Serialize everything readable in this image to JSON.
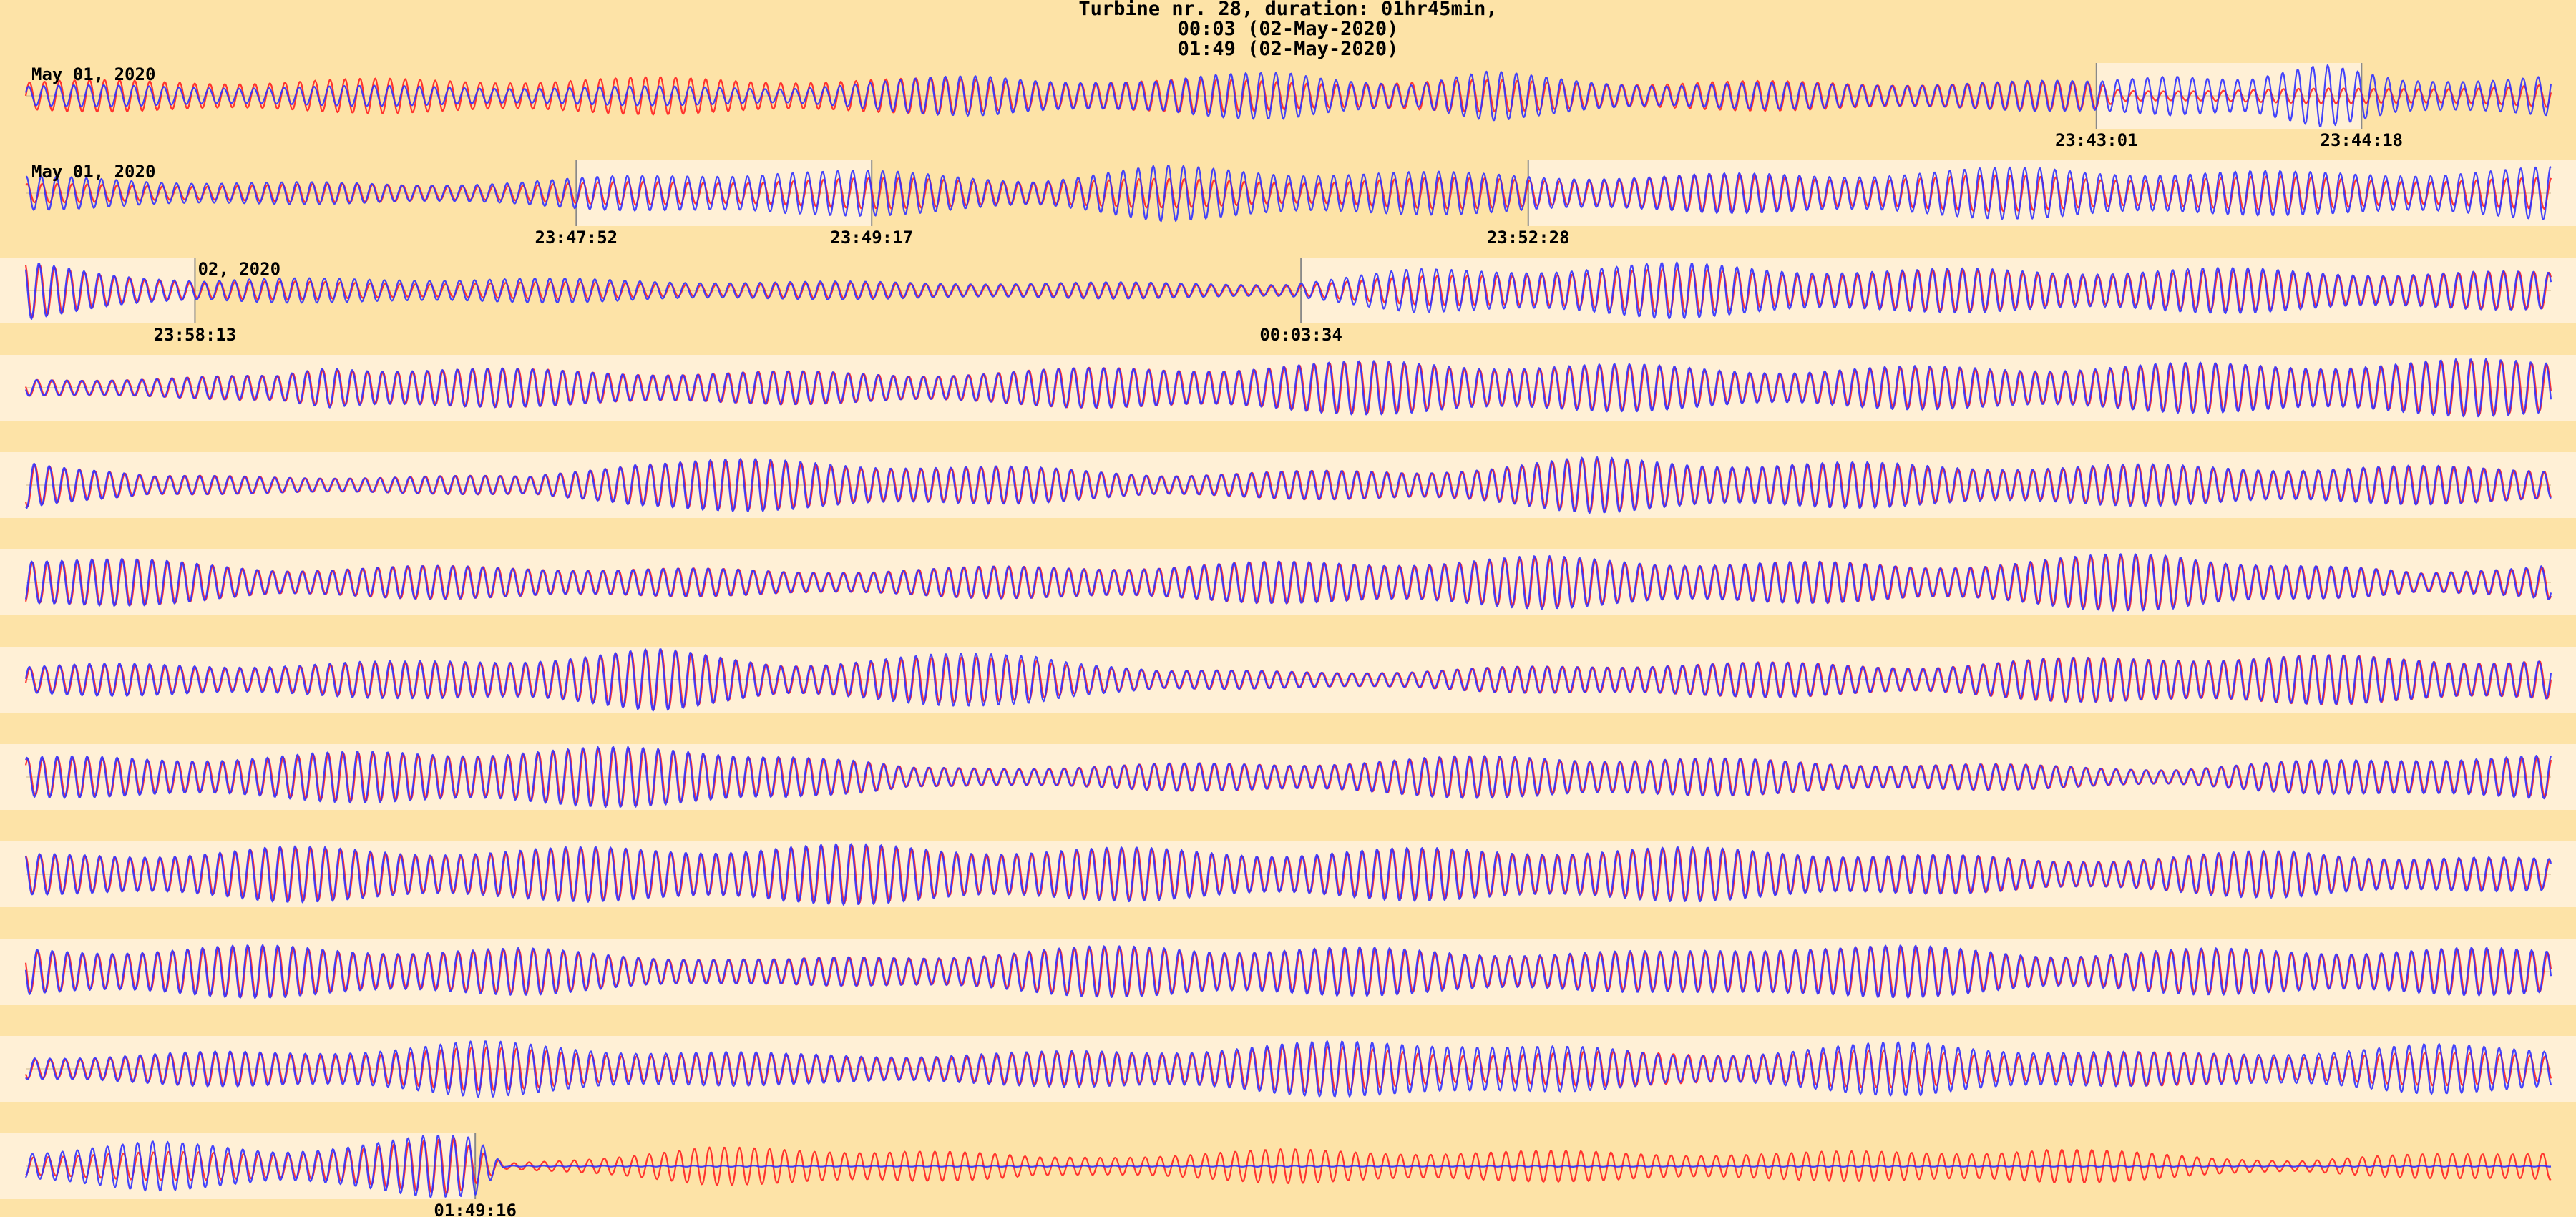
{
  "chart_data": {
    "type": "line",
    "title_lines": [
      "Turbine nr. 28,  duration: 01hr45min,",
      "00:03 (02-May-2020)",
      "01:49 (02-May-2020)"
    ],
    "colors": {
      "background": "#fde3a7",
      "highlight": "#fff0d6",
      "series_a": "#ff2020",
      "series_b": "#3030ff",
      "separator": "#8a8a8a"
    },
    "rows": [
      {
        "date_label": "May 01, 2020",
        "highlights": [
          [
            0.82,
            0.925
          ]
        ],
        "separators": [
          0.82,
          0.925
        ],
        "timestamps": [
          {
            "pos": 0.82,
            "label": "23:43:01"
          },
          {
            "pos": 0.925,
            "label": "23:44:18"
          }
        ],
        "red_env": [
          [
            0,
            0.5
          ],
          [
            0.25,
            0.6
          ],
          [
            0.4,
            0.55
          ],
          [
            0.6,
            0.5
          ],
          [
            0.82,
            0.45
          ],
          [
            0.83,
            0.2
          ],
          [
            0.93,
            0.25
          ],
          [
            1,
            0.4
          ]
        ],
        "blue_env": [
          [
            0,
            0.35
          ],
          [
            0.3,
            0.3
          ],
          [
            0.38,
            0.7
          ],
          [
            0.45,
            0.5
          ],
          [
            0.5,
            0.9
          ],
          [
            0.55,
            0.4
          ],
          [
            0.58,
            0.8
          ],
          [
            0.65,
            0.4
          ],
          [
            0.82,
            0.5
          ],
          [
            0.85,
            0.9
          ],
          [
            0.88,
            0.6
          ],
          [
            0.91,
            1
          ],
          [
            0.94,
            0.6
          ],
          [
            1,
            0.7
          ]
        ]
      },
      {
        "date_label": "May 01, 2020",
        "highlights": [
          [
            0.218,
            0.335
          ],
          [
            0.595,
            1
          ]
        ],
        "separators": [
          0.218,
          0.335,
          0.595
        ],
        "timestamps": [
          {
            "pos": 0.218,
            "label": "23:47:52"
          },
          {
            "pos": 0.335,
            "label": "23:49:17"
          },
          {
            "pos": 0.595,
            "label": "23:52:28"
          }
        ],
        "red_env": [
          [
            0,
            0.3
          ],
          [
            0.2,
            0.3
          ],
          [
            0.3,
            0.5
          ],
          [
            0.5,
            0.45
          ],
          [
            0.7,
            0.6
          ],
          [
            1,
            0.5
          ]
        ],
        "blue_env": [
          [
            0,
            0.55
          ],
          [
            0.15,
            0.3
          ],
          [
            0.25,
            0.6
          ],
          [
            0.3,
            0.85
          ],
          [
            0.4,
            0.5
          ],
          [
            0.45,
            0.9
          ],
          [
            0.55,
            0.7
          ],
          [
            0.65,
            0.6
          ],
          [
            0.8,
            0.85
          ],
          [
            0.9,
            0.7
          ],
          [
            1,
            0.85
          ]
        ]
      },
      {
        "date_label": "02, 2020",
        "date_label_pos": 0.067,
        "highlights": [
          [
            0,
            0.067
          ],
          [
            0.505,
            1
          ]
        ],
        "separators": [
          0.067,
          0.505
        ],
        "timestamps": [
          {
            "pos": 0.067,
            "label": "23:58:13"
          },
          {
            "pos": 0.505,
            "label": "00:03:34"
          }
        ],
        "red_env": [
          [
            0,
            0.9
          ],
          [
            0.07,
            0.3
          ],
          [
            0.3,
            0.25
          ],
          [
            0.5,
            0.2
          ],
          [
            0.6,
            0.7
          ],
          [
            1,
            0.6
          ]
        ],
        "blue_env": [
          [
            0,
            0.95
          ],
          [
            0.07,
            0.35
          ],
          [
            0.15,
            0.45
          ],
          [
            0.3,
            0.3
          ],
          [
            0.5,
            0.25
          ],
          [
            0.55,
            0.7
          ],
          [
            0.65,
            0.9
          ],
          [
            0.75,
            0.7
          ],
          [
            0.85,
            0.75
          ],
          [
            1,
            0.6
          ]
        ]
      },
      {
        "highlights": [
          [
            0,
            1
          ]
        ],
        "red_env": [
          [
            0,
            0.3
          ],
          [
            0.1,
            0.4
          ],
          [
            0.12,
            0.75
          ],
          [
            0.2,
            0.6
          ],
          [
            0.35,
            0.5
          ],
          [
            0.45,
            0.7
          ],
          [
            0.55,
            0.85
          ],
          [
            0.7,
            0.6
          ],
          [
            0.9,
            0.8
          ],
          [
            1,
            0.9
          ]
        ],
        "blue_env": [
          [
            0,
            0.3
          ],
          [
            0.1,
            0.4
          ],
          [
            0.12,
            0.8
          ],
          [
            0.2,
            0.6
          ],
          [
            0.35,
            0.5
          ],
          [
            0.45,
            0.7
          ],
          [
            0.55,
            0.9
          ],
          [
            0.7,
            0.65
          ],
          [
            0.9,
            0.85
          ],
          [
            1,
            0.95
          ]
        ]
      },
      {
        "highlights": [
          [
            0,
            1
          ]
        ],
        "red_env": [
          [
            0,
            0.95
          ],
          [
            0.05,
            0.3
          ],
          [
            0.2,
            0.3
          ],
          [
            0.24,
            0.85
          ],
          [
            0.35,
            0.7
          ],
          [
            0.45,
            0.4
          ],
          [
            0.55,
            0.5
          ],
          [
            0.62,
            0.85
          ],
          [
            0.75,
            0.65
          ],
          [
            0.9,
            0.6
          ],
          [
            1,
            0.6
          ]
        ],
        "blue_env": [
          [
            0,
            1
          ],
          [
            0.05,
            0.3
          ],
          [
            0.2,
            0.3
          ],
          [
            0.24,
            0.9
          ],
          [
            0.35,
            0.75
          ],
          [
            0.45,
            0.4
          ],
          [
            0.55,
            0.5
          ],
          [
            0.62,
            0.9
          ],
          [
            0.75,
            0.7
          ],
          [
            0.9,
            0.65
          ],
          [
            1,
            0.6
          ]
        ]
      },
      {
        "highlights": [
          [
            0,
            1
          ]
        ],
        "red_env": [
          [
            0,
            0.9
          ],
          [
            0.1,
            0.5
          ],
          [
            0.2,
            0.55
          ],
          [
            0.3,
            0.4
          ],
          [
            0.45,
            0.6
          ],
          [
            0.6,
            0.8
          ],
          [
            0.75,
            0.6
          ],
          [
            0.85,
            0.95
          ],
          [
            0.95,
            0.3
          ],
          [
            1,
            0.7
          ]
        ],
        "blue_env": [
          [
            0,
            0.95
          ],
          [
            0.1,
            0.5
          ],
          [
            0.2,
            0.55
          ],
          [
            0.3,
            0.4
          ],
          [
            0.45,
            0.6
          ],
          [
            0.6,
            0.85
          ],
          [
            0.75,
            0.6
          ],
          [
            0.85,
            1
          ],
          [
            0.95,
            0.3
          ],
          [
            1,
            0.75
          ]
        ]
      },
      {
        "highlights": [
          [
            0,
            1
          ]
        ],
        "red_env": [
          [
            0,
            0.45
          ],
          [
            0.15,
            0.55
          ],
          [
            0.25,
            0.95
          ],
          [
            0.3,
            0.6
          ],
          [
            0.4,
            0.8
          ],
          [
            0.45,
            0.3
          ],
          [
            0.55,
            0.3
          ],
          [
            0.65,
            0.6
          ],
          [
            0.75,
            0.5
          ],
          [
            0.85,
            0.85
          ],
          [
            1,
            0.7
          ]
        ],
        "blue_env": [
          [
            0,
            0.5
          ],
          [
            0.15,
            0.6
          ],
          [
            0.25,
            1
          ],
          [
            0.3,
            0.6
          ],
          [
            0.4,
            0.95
          ],
          [
            0.45,
            0.3
          ],
          [
            0.55,
            0.3
          ],
          [
            0.65,
            0.6
          ],
          [
            0.75,
            0.5
          ],
          [
            0.85,
            0.85
          ],
          [
            1,
            0.7
          ]
        ]
      },
      {
        "highlights": [
          [
            0,
            1
          ]
        ],
        "red_env": [
          [
            0,
            0.6
          ],
          [
            0.1,
            0.7
          ],
          [
            0.2,
            0.95
          ],
          [
            0.3,
            0.85
          ],
          [
            0.35,
            0.3
          ],
          [
            0.5,
            0.5
          ],
          [
            0.6,
            0.7
          ],
          [
            0.7,
            0.55
          ],
          [
            0.85,
            0.3
          ],
          [
            0.95,
            0.7
          ],
          [
            1,
            0.65
          ]
        ],
        "blue_env": [
          [
            0,
            0.65
          ],
          [
            0.1,
            0.75
          ],
          [
            0.2,
            1
          ],
          [
            0.3,
            0.9
          ],
          [
            0.35,
            0.3
          ],
          [
            0.5,
            0.5
          ],
          [
            0.6,
            0.75
          ],
          [
            0.7,
            0.55
          ],
          [
            0.85,
            0.3
          ],
          [
            0.95,
            0.75
          ],
          [
            1,
            0.7
          ]
        ]
      },
      {
        "highlights": [
          [
            0,
            1
          ]
        ],
        "red_env": [
          [
            0,
            0.6
          ],
          [
            0.1,
            0.85
          ],
          [
            0.2,
            0.8
          ],
          [
            0.3,
            0.95
          ],
          [
            0.4,
            0.85
          ],
          [
            0.5,
            0.75
          ],
          [
            0.6,
            0.85
          ],
          [
            0.7,
            0.8
          ],
          [
            0.8,
            0.5
          ],
          [
            0.9,
            0.75
          ],
          [
            1,
            0.45
          ]
        ],
        "blue_env": [
          [
            0,
            0.65
          ],
          [
            0.1,
            0.9
          ],
          [
            0.2,
            0.85
          ],
          [
            0.3,
            1
          ],
          [
            0.4,
            0.9
          ],
          [
            0.5,
            0.8
          ],
          [
            0.6,
            0.9
          ],
          [
            0.7,
            0.85
          ],
          [
            0.8,
            0.5
          ],
          [
            0.9,
            0.8
          ],
          [
            1,
            0.5
          ]
        ]
      },
      {
        "highlights": [
          [
            0,
            1
          ]
        ],
        "red_env": [
          [
            0,
            0.75
          ],
          [
            0.1,
            0.8
          ],
          [
            0.2,
            0.7
          ],
          [
            0.3,
            0.4
          ],
          [
            0.45,
            0.85
          ],
          [
            0.55,
            0.7
          ],
          [
            0.65,
            0.6
          ],
          [
            0.7,
            0.95
          ],
          [
            0.8,
            0.6
          ],
          [
            0.9,
            0.75
          ],
          [
            1,
            0.7
          ]
        ],
        "blue_env": [
          [
            0,
            0.8
          ],
          [
            0.1,
            0.85
          ],
          [
            0.2,
            0.75
          ],
          [
            0.3,
            0.4
          ],
          [
            0.45,
            0.9
          ],
          [
            0.55,
            0.75
          ],
          [
            0.65,
            0.65
          ],
          [
            0.7,
            1
          ],
          [
            0.8,
            0.65
          ],
          [
            0.9,
            0.8
          ],
          [
            1,
            0.75
          ]
        ]
      },
      {
        "highlights": [
          [
            0,
            1
          ]
        ],
        "red_env": [
          [
            0,
            0.4
          ],
          [
            0.1,
            0.55
          ],
          [
            0.18,
            0.7
          ],
          [
            0.3,
            0.45
          ],
          [
            0.4,
            0.5
          ],
          [
            0.5,
            0.75
          ],
          [
            0.6,
            0.55
          ],
          [
            0.75,
            0.6
          ],
          [
            0.9,
            0.5
          ],
          [
            1,
            0.55
          ]
        ],
        "blue_env": [
          [
            0,
            0.45
          ],
          [
            0.1,
            0.6
          ],
          [
            0.18,
            0.9
          ],
          [
            0.3,
            0.5
          ],
          [
            0.4,
            0.55
          ],
          [
            0.5,
            0.85
          ],
          [
            0.57,
            1
          ],
          [
            0.65,
            0.5
          ],
          [
            0.75,
            0.9
          ],
          [
            0.85,
            0.5
          ],
          [
            0.95,
            0.8
          ],
          [
            1,
            0.75
          ]
        ]
      },
      {
        "highlights": [
          [
            0,
            0.178
          ]
        ],
        "separators": [
          0.178
        ],
        "timestamps": [
          {
            "pos": 0.178,
            "label": "01:49:16"
          }
        ],
        "red_env": [
          [
            0,
            0.4
          ],
          [
            0.1,
            0.5
          ],
          [
            0.17,
            0.9
          ],
          [
            0.19,
            0.1
          ],
          [
            0.27,
            0.6
          ],
          [
            0.35,
            0.6
          ],
          [
            0.4,
            0.3
          ],
          [
            0.5,
            0.55
          ],
          [
            0.7,
            0.45
          ],
          [
            0.8,
            0.6
          ],
          [
            0.9,
            0.2
          ],
          [
            1,
            0.6
          ]
        ],
        "blue_env": [
          [
            0,
            0.55
          ],
          [
            0.05,
            0.8
          ],
          [
            0.1,
            0.6
          ],
          [
            0.16,
            1
          ],
          [
            0.178,
            0.95
          ],
          [
            0.19,
            0.02
          ],
          [
            1,
            0.02
          ]
        ]
      }
    ]
  }
}
